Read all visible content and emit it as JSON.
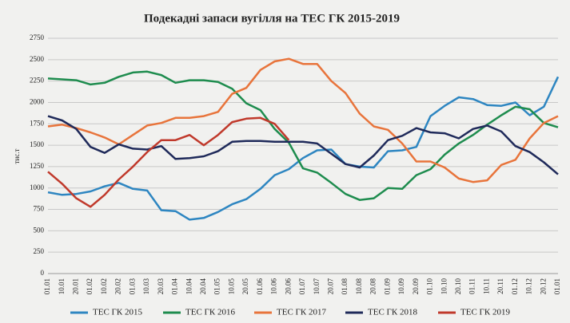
{
  "chart_data": {
    "type": "line",
    "title": "Подекадні запаси вугілля на ТЕС ГК 2015-2019",
    "y_label": "тис.т",
    "categories": [
      "01.01",
      "10.01",
      "20.01",
      "01.02",
      "10.02",
      "20.02",
      "01.03",
      "10.03",
      "20.03",
      "01.04",
      "10.04",
      "20.04",
      "01.05",
      "10.05",
      "20.05",
      "01.06",
      "10.06",
      "20.06",
      "01.07",
      "10.07",
      "20.07",
      "01.08",
      "10.08",
      "20.08",
      "01.09",
      "10.09",
      "20.09",
      "01.10",
      "10.10",
      "20.10",
      "01.11",
      "10.11",
      "20.11",
      "01.12",
      "10.12",
      "20.12",
      "01.01"
    ],
    "series": [
      {
        "name": "ТЕС ГК 2015",
        "color": "#2e86c1",
        "values": [
          950,
          920,
          930,
          960,
          1020,
          1060,
          990,
          970,
          740,
          730,
          630,
          650,
          720,
          810,
          870,
          990,
          1150,
          1220,
          1350,
          1440,
          1450,
          1280,
          1250,
          1240,
          1430,
          1440,
          1480,
          1840,
          1960,
          2060,
          2040,
          1970,
          1960,
          2000,
          1850,
          1950,
          2300
        ]
      },
      {
        "name": "ТЕС ГК 2016",
        "color": "#1e8c4e",
        "values": [
          2280,
          2270,
          2260,
          2210,
          2230,
          2300,
          2350,
          2360,
          2320,
          2230,
          2260,
          2260,
          2240,
          2160,
          1990,
          1910,
          1690,
          1530,
          1230,
          1180,
          1060,
          930,
          860,
          880,
          1000,
          990,
          1150,
          1220,
          1390,
          1520,
          1620,
          1740,
          1850,
          1950,
          1920,
          1760,
          1710
        ]
      },
      {
        "name": "ТЕС ГК 2017",
        "color": "#e8743b",
        "values": [
          1720,
          1740,
          1700,
          1650,
          1590,
          1510,
          1620,
          1730,
          1760,
          1820,
          1820,
          1840,
          1890,
          2100,
          2170,
          2380,
          2480,
          2510,
          2450,
          2450,
          2250,
          2110,
          1870,
          1720,
          1680,
          1520,
          1310,
          1310,
          1240,
          1110,
          1070,
          1090,
          1270,
          1330,
          1580,
          1760,
          1840
        ]
      },
      {
        "name": "ТЕС ГК 2018",
        "color": "#1f2a5a",
        "values": [
          1840,
          1790,
          1690,
          1480,
          1410,
          1510,
          1460,
          1450,
          1490,
          1340,
          1350,
          1370,
          1430,
          1540,
          1550,
          1550,
          1540,
          1540,
          1540,
          1520,
          1400,
          1280,
          1240,
          1380,
          1560,
          1610,
          1700,
          1650,
          1640,
          1580,
          1690,
          1730,
          1660,
          1490,
          1420,
          1300,
          1160
        ]
      },
      {
        "name": "ТЕС ГК 2019",
        "color": "#c0392b",
        "values": [
          1190,
          1050,
          880,
          780,
          920,
          1100,
          1250,
          1420,
          1560,
          1560,
          1620,
          1500,
          1620,
          1770,
          1810,
          1820,
          1750,
          1560,
          null,
          null,
          null,
          null,
          null,
          null,
          null,
          null,
          null,
          null,
          null,
          null,
          null,
          null,
          null,
          null,
          null,
          null,
          null
        ]
      }
    ],
    "ylim": [
      0,
      2750
    ],
    "yticks": [
      0,
      250,
      500,
      750,
      1000,
      1250,
      1500,
      1750,
      2000,
      2250,
      2500,
      2750
    ],
    "grid": true
  }
}
